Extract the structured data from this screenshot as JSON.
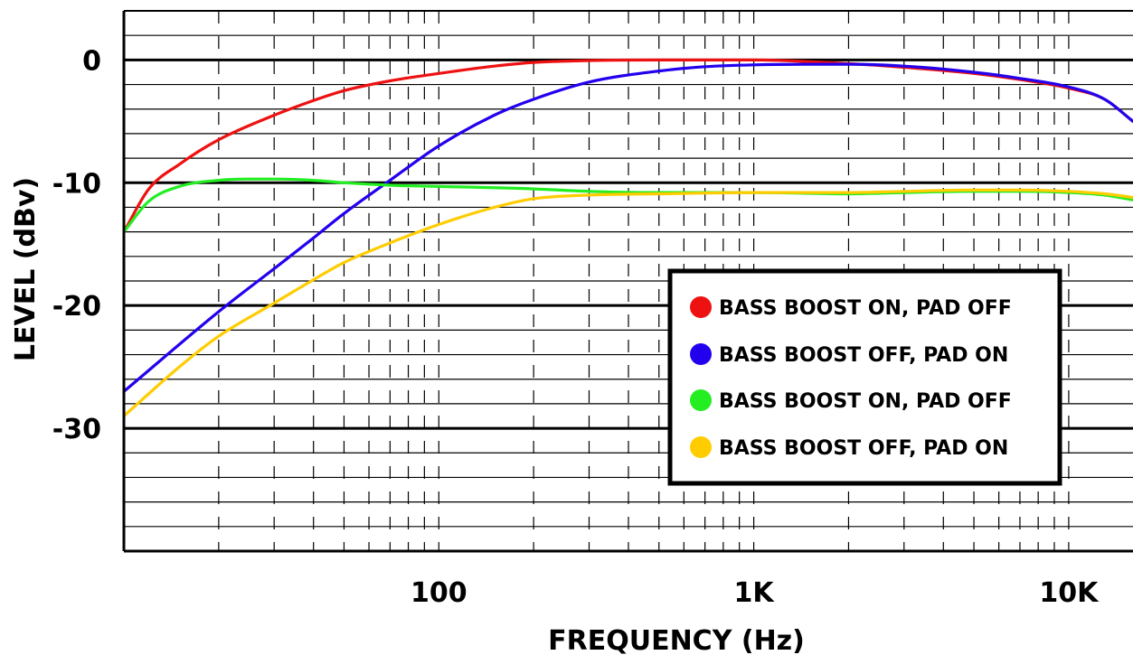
{
  "chart_data": {
    "type": "line",
    "xlabel": "FREQUENCY (Hz)",
    "ylabel": "LEVEL (dBv)",
    "x_scale": "log",
    "xlim": [
      10,
      16000
    ],
    "ylim": [
      -40,
      4
    ],
    "x_ticks": [
      {
        "value": 100,
        "label": "100"
      },
      {
        "value": 1000,
        "label": "1K"
      },
      {
        "value": 10000,
        "label": "10K"
      }
    ],
    "y_ticks": [
      {
        "value": 0,
        "label": "0"
      },
      {
        "value": -10,
        "label": "-10"
      },
      {
        "value": -20,
        "label": "-20"
      },
      {
        "value": -30,
        "label": "-30"
      }
    ],
    "grid": true,
    "legend_position": "lower-right",
    "series": [
      {
        "name": "BASS BOOST ON, PAD OFF",
        "color": "#ee1111",
        "x": [
          10,
          12,
          15,
          20,
          30,
          40,
          50,
          70,
          100,
          150,
          200,
          300,
          500,
          1000,
          2000,
          3000,
          5000,
          7000,
          10000,
          13000,
          16000
        ],
        "y": [
          -14,
          -10.5,
          -8.5,
          -6.5,
          -4.5,
          -3.3,
          -2.5,
          -1.7,
          -1.1,
          -0.5,
          -0.2,
          -0.05,
          0,
          0,
          -0.3,
          -0.6,
          -1.1,
          -1.6,
          -2.3,
          -3.2,
          -5.0
        ]
      },
      {
        "name": "BASS BOOST OFF, PAD ON",
        "color": "#2200ee",
        "x": [
          10,
          20,
          30,
          40,
          50,
          70,
          100,
          150,
          200,
          300,
          500,
          700,
          1000,
          1500,
          2000,
          3000,
          5000,
          7000,
          10000,
          13000,
          16000
        ],
        "y": [
          -27,
          -20.5,
          -17,
          -14.5,
          -12.5,
          -9.8,
          -7.0,
          -4.5,
          -3.2,
          -1.8,
          -0.9,
          -0.55,
          -0.4,
          -0.35,
          -0.35,
          -0.5,
          -1.0,
          -1.5,
          -2.2,
          -3.2,
          -5.0
        ]
      },
      {
        "name": "BASS BOOST ON, PAD OFF",
        "color": "#22ee22",
        "x": [
          10,
          12,
          15,
          20,
          25,
          30,
          40,
          50,
          70,
          100,
          200,
          300,
          500,
          1000,
          2000,
          3000,
          5000,
          7000,
          10000,
          13000,
          16000
        ],
        "y": [
          -14,
          -11.5,
          -10.3,
          -9.8,
          -9.7,
          -9.7,
          -9.8,
          -10.0,
          -10.2,
          -10.3,
          -10.5,
          -10.7,
          -10.8,
          -10.8,
          -10.9,
          -10.8,
          -10.7,
          -10.7,
          -10.8,
          -11.0,
          -11.4
        ]
      },
      {
        "name": "BASS BOOST OFF, PAD ON",
        "color": "#ffcc00",
        "x": [
          10,
          15,
          20,
          30,
          40,
          50,
          70,
          100,
          150,
          200,
          300,
          500,
          1000,
          2000,
          3000,
          5000,
          7000,
          10000,
          13000,
          16000
        ],
        "y": [
          -29,
          -25,
          -22.5,
          -19.8,
          -17.9,
          -16.5,
          -14.9,
          -13.4,
          -12.0,
          -11.3,
          -11.0,
          -10.9,
          -10.8,
          -10.8,
          -10.7,
          -10.6,
          -10.6,
          -10.7,
          -10.9,
          -11.2
        ]
      }
    ]
  }
}
